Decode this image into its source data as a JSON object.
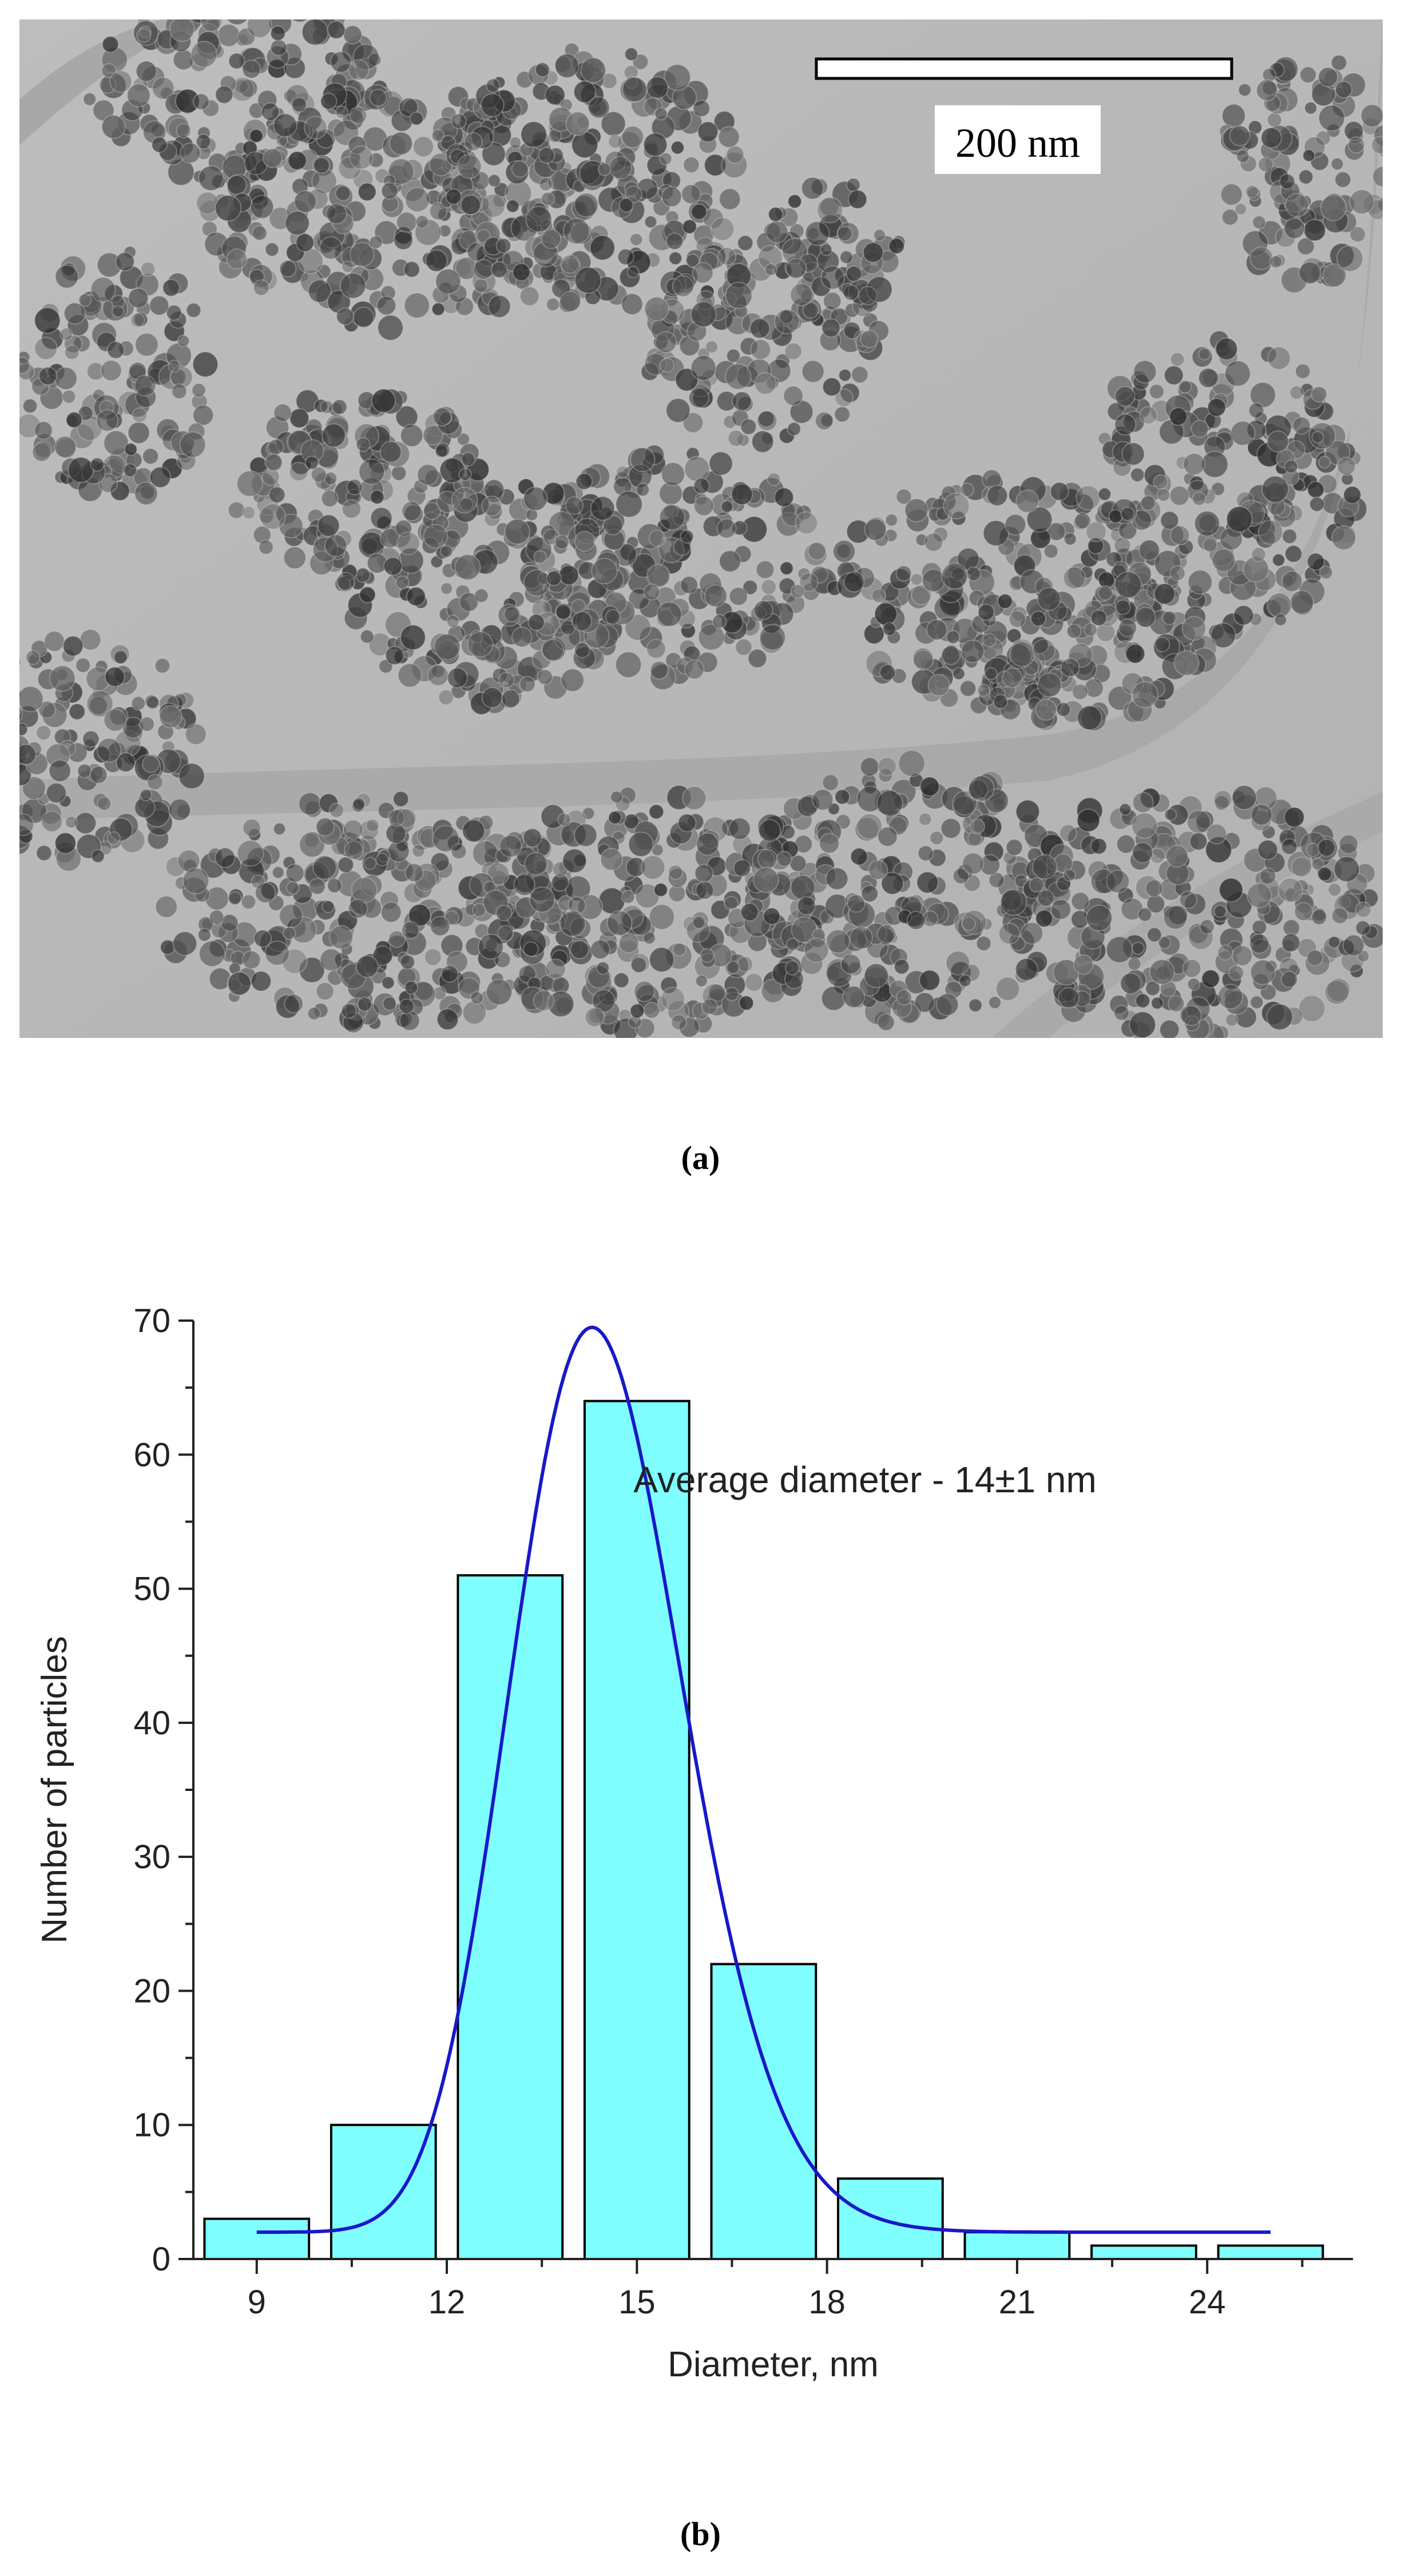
{
  "figure": {
    "panel_a": {
      "caption": "(a)",
      "scale_bar_label": "200 nm",
      "image_description": "TEM micrograph"
    },
    "panel_b": {
      "caption": "(b)"
    }
  },
  "colors": {
    "bar_fill": "#7fffff",
    "bar_stroke": "#000000",
    "fit_line": "#1818c8",
    "tem_background": "#b9b9b9",
    "tem_particles": "#3c3c3c"
  },
  "chart_data": {
    "type": "bar",
    "title": "",
    "xlabel": "Diameter, nm",
    "ylabel": "Number of particles",
    "annotation": "Average diameter - 14±1 nm",
    "xlim": [
      8,
      26.3
    ],
    "ylim": [
      0,
      70
    ],
    "x_ticks": [
      9,
      12,
      15,
      18,
      21,
      24
    ],
    "y_ticks": [
      0,
      10,
      20,
      30,
      40,
      50,
      60,
      70
    ],
    "bins": [
      {
        "center": 9.0,
        "value": 3
      },
      {
        "center": 11.0,
        "value": 10
      },
      {
        "center": 13.0,
        "value": 51
      },
      {
        "center": 15.0,
        "value": 64
      },
      {
        "center": 17.0,
        "value": 22
      },
      {
        "center": 19.0,
        "value": 6
      },
      {
        "center": 21.0,
        "value": 2
      },
      {
        "center": 23.0,
        "value": 1
      },
      {
        "center": 25.0,
        "value": 1
      }
    ],
    "bin_width_display": 1.65,
    "fit_curve": {
      "type": "lognormal",
      "x_range": [
        9,
        25
      ],
      "peak_x": 14.3,
      "peak_y": 69.5,
      "baseline": 2
    },
    "grid": false,
    "legend": "none"
  }
}
